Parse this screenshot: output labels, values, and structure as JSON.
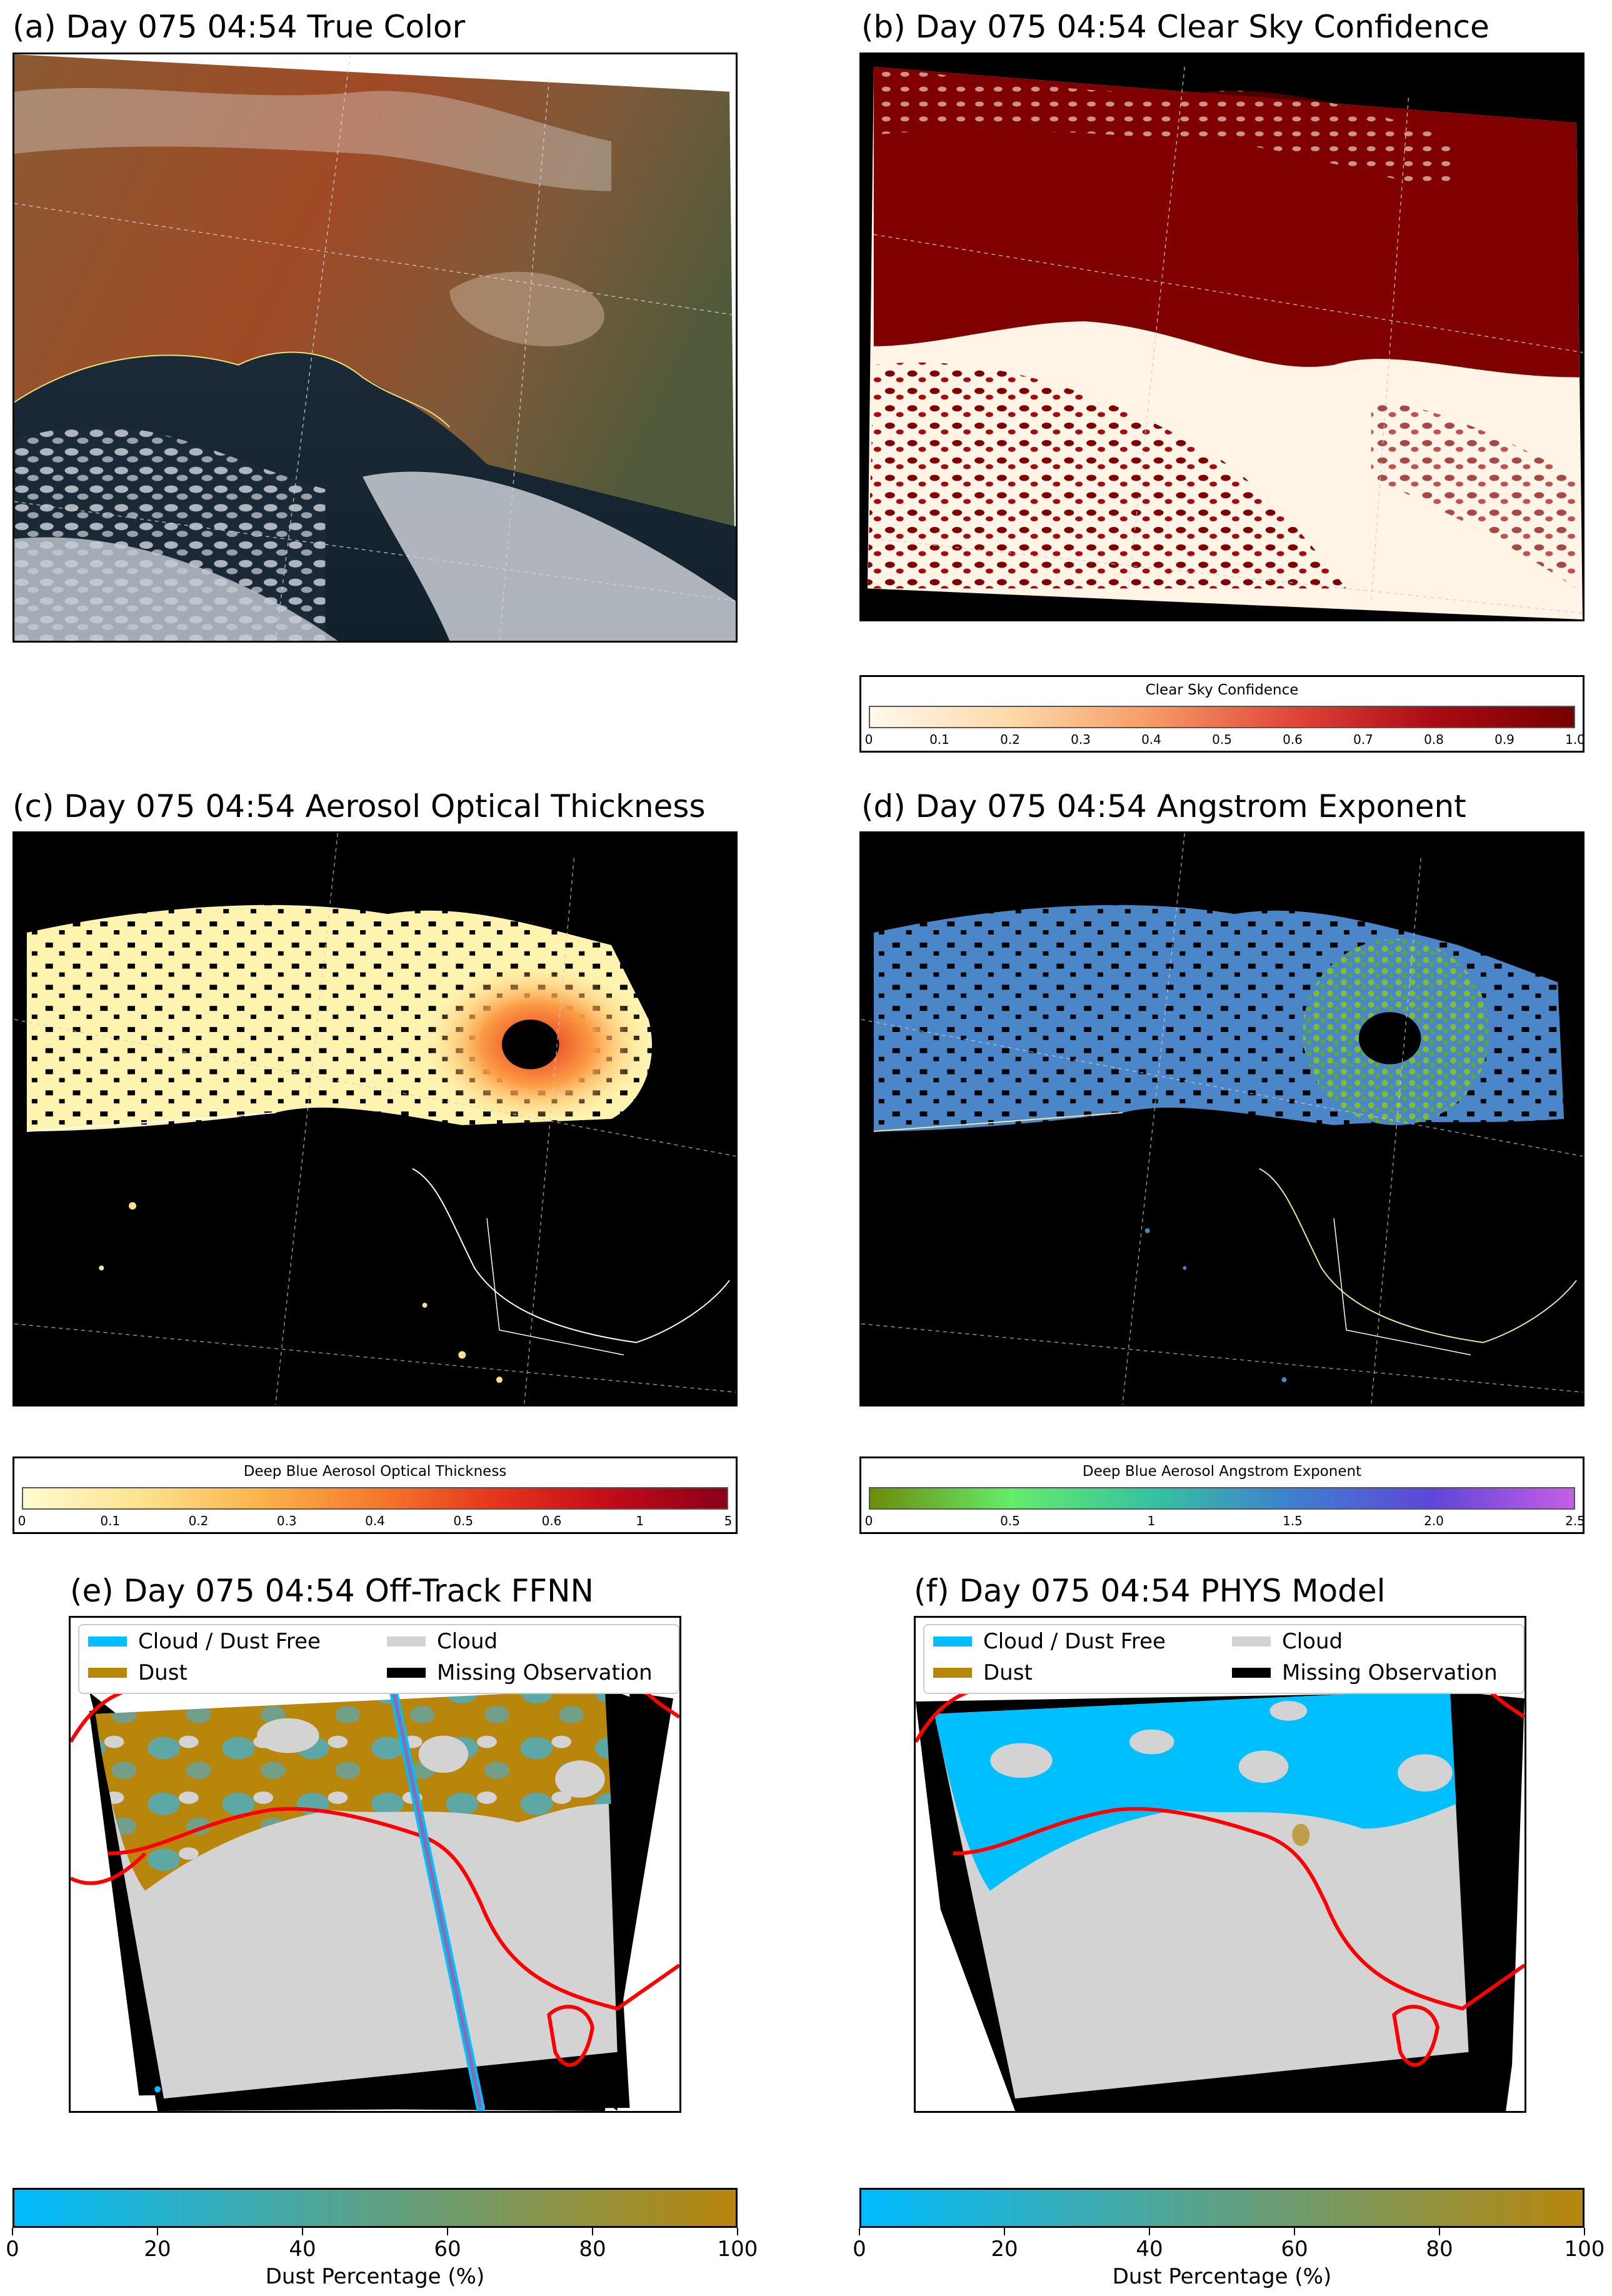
{
  "panels": {
    "a": {
      "title": "(a) Day 075 04:54 True Color"
    },
    "b": {
      "title": "(b) Day 075 04:54 Clear Sky Confidence"
    },
    "c": {
      "title": "(c) Day 075 04:54 Aerosol Optical Thickness"
    },
    "d": {
      "title": "(d) Day 075 04:54 Angstrom Exponent"
    },
    "e": {
      "title": "(e) Day 075 04:54 Off-Track FFNN"
    },
    "f": {
      "title": "(f) Day 075 04:54 PHYS Model"
    }
  },
  "colorbars": {
    "clear_sky": {
      "title": "Clear Sky Confidence",
      "ticks": [
        "0",
        "0.1",
        "0.2",
        "0.3",
        "0.4",
        "0.5",
        "0.6",
        "0.7",
        "0.8",
        "0.9",
        "1.0"
      ],
      "colors": [
        "#fff8ec",
        "#fdd9a8",
        "#f79a64",
        "#e0463a",
        "#ab0b14",
        "#760000"
      ]
    },
    "aot": {
      "title": "Deep Blue Aerosol Optical Thickness",
      "ticks": [
        "0",
        "0.1",
        "0.2",
        "0.3",
        "0.4",
        "0.5",
        "0.6",
        "1",
        "5"
      ],
      "colors": [
        "#fffbd0",
        "#fde38e",
        "#fbb44c",
        "#f57b2c",
        "#e6361d",
        "#c20c18",
        "#8a0018"
      ]
    },
    "angstrom": {
      "title": "Deep Blue Aerosol Angstrom Exponent",
      "ticks": [
        "0",
        "0.5",
        "1",
        "1.5",
        "2.0",
        "2.5"
      ],
      "colors": [
        "#6c8c0a",
        "#64ec6a",
        "#36c2a0",
        "#3f7fcf",
        "#5f46d8",
        "#c65ee6"
      ]
    },
    "dust": {
      "label": "Dust Percentage (%)",
      "ticks": [
        "0",
        "20",
        "40",
        "60",
        "80",
        "100"
      ],
      "colors": [
        "#00bcff",
        "#b8860b"
      ]
    }
  },
  "legend": {
    "items": [
      {
        "label": "Cloud / Dust Free",
        "color": "#00bfff"
      },
      {
        "label": "Cloud",
        "color": "#d3d3d3"
      },
      {
        "label": "Dust",
        "color": "#b8860b"
      },
      {
        "label": "Missing Observation",
        "color": "#000000"
      }
    ]
  },
  "map_colors": {
    "dust": "#b8860b",
    "cloud": "#d3d3d3",
    "dust_free": "#00bfff",
    "missing": "#000000",
    "coastline_classification": "#ff0000",
    "clear_sky_max": "#800000",
    "clear_sky_min": "#fff4e6"
  }
}
